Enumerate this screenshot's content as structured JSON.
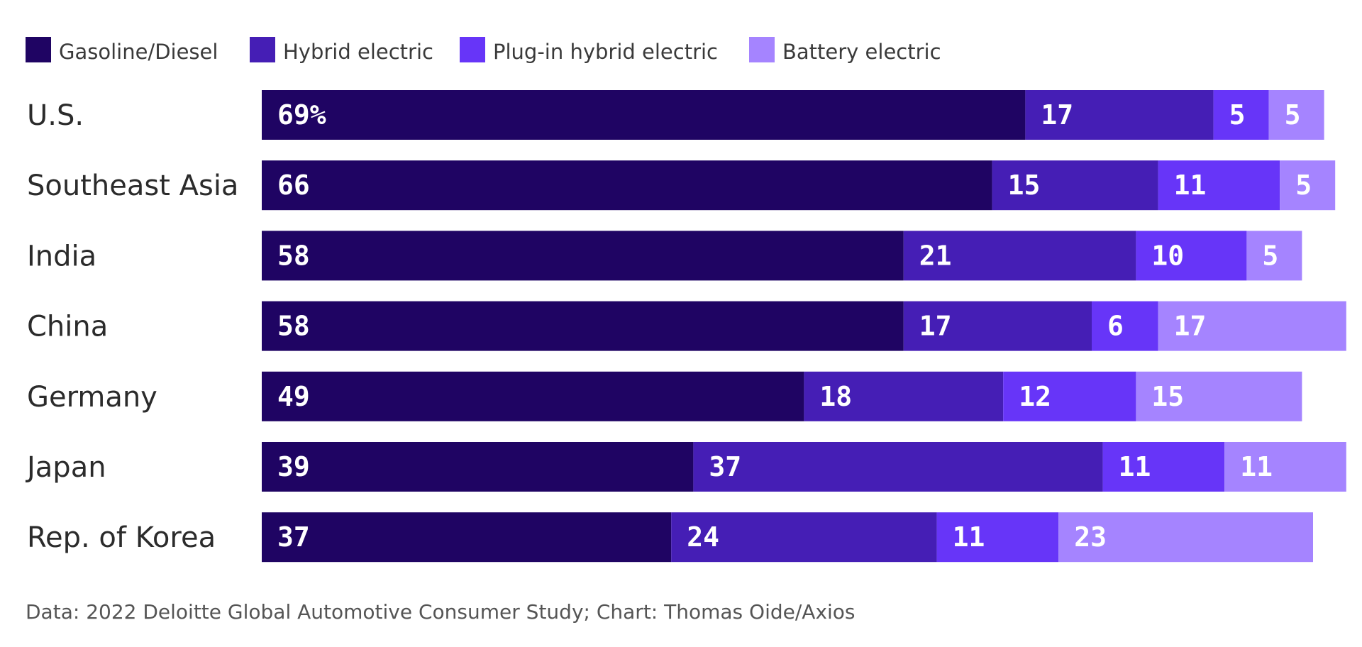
{
  "chart_data": {
    "type": "bar",
    "orientation": "horizontal",
    "stacked": true,
    "title": "",
    "categories": [
      "U.S.",
      "Southeast Asia",
      "India",
      "China",
      "Germany",
      "Japan",
      "Rep. of Korea"
    ],
    "series": [
      {
        "name": "Gasoline/Diesel",
        "color": "#1f0463",
        "values": [
          69,
          66,
          58,
          58,
          49,
          39,
          37
        ]
      },
      {
        "name": "Hybrid electric",
        "color": "#451eb5",
        "values": [
          17,
          15,
          21,
          17,
          18,
          37,
          24
        ]
      },
      {
        "name": "Plug-in hybrid electric",
        "color": "#6735f8",
        "values": [
          5,
          11,
          10,
          6,
          12,
          11,
          11
        ]
      },
      {
        "name": "Battery electric",
        "color": "#a584ff",
        "values": [
          5,
          5,
          5,
          17,
          15,
          11,
          23
        ]
      }
    ],
    "data_labels": [
      [
        "69%",
        "17",
        "5",
        "5"
      ],
      [
        "66",
        "15",
        "11",
        "5"
      ],
      [
        "58",
        "21",
        "10",
        "5"
      ],
      [
        "58",
        "17",
        "6",
        "17"
      ],
      [
        "49",
        "18",
        "12",
        "15"
      ],
      [
        "39",
        "37",
        "11",
        "11"
      ],
      [
        "37",
        "24",
        "11",
        "23"
      ]
    ],
    "xlim": [
      0,
      100
    ],
    "grid": false,
    "legend": "top-left",
    "xlabel": "",
    "ylabel": ""
  },
  "source": "Data: 2022 Deloitte Global Automotive Consumer Study; Chart: Thomas Oide/Axios"
}
